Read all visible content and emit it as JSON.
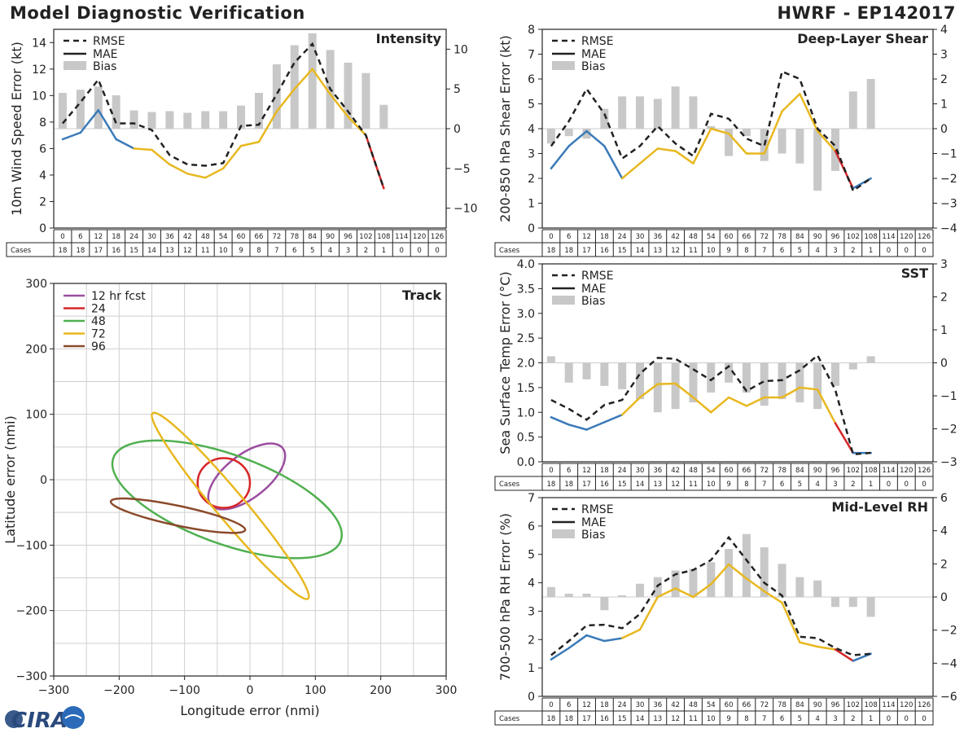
{
  "header": {
    "title": "Model Diagnostic Verification",
    "storm": "HWRF - EP142017",
    "logo_text": "CIRA"
  },
  "forecast_hours": [
    0,
    6,
    12,
    18,
    24,
    30,
    36,
    42,
    48,
    54,
    60,
    66,
    72,
    78,
    84,
    90,
    96,
    102,
    108,
    114,
    120,
    126
  ],
  "cases": [
    18,
    18,
    17,
    16,
    15,
    14,
    13,
    12,
    11,
    10,
    9,
    8,
    7,
    6,
    5,
    4,
    3,
    2,
    1,
    0,
    0,
    0
  ],
  "cases_label": "Cases",
  "legend": {
    "rmse": "RMSE",
    "mae": "MAE",
    "bias": "Bias"
  },
  "colors": {
    "rmse": "#222222",
    "bias": "#c8c8c8",
    "mae_segments": [
      "#3a7ab8",
      "#e8b820",
      "#d62728"
    ]
  },
  "chart_data": [
    {
      "id": "intensity",
      "type": "bar+line",
      "title": "Intensity",
      "ylabel": "10m Wind Speed Error (kt)",
      "ylim": [
        0,
        15
      ],
      "yticks": [
        0,
        2,
        4,
        6,
        8,
        10,
        12,
        14
      ],
      "y2lim": [
        -12.5,
        12.5
      ],
      "y2ticks": [
        -10,
        -5,
        0,
        5,
        10
      ],
      "rmse": [
        7.9,
        9.5,
        11.2,
        7.9,
        7.9,
        7.4,
        5.5,
        4.8,
        4.7,
        4.9,
        7.7,
        7.8,
        10.1,
        12.5,
        13.9,
        10.5,
        8.8,
        7.0,
        3.0
      ],
      "mae": [
        6.7,
        7.2,
        8.9,
        6.7,
        6.0,
        5.9,
        4.8,
        4.1,
        3.8,
        4.5,
        6.2,
        6.5,
        8.8,
        10.5,
        12.0,
        10.1,
        8.4,
        7.0,
        3.0
      ],
      "mae_colors": [
        0,
        0,
        0,
        0,
        0,
        1,
        1,
        1,
        1,
        1,
        1,
        1,
        1,
        1,
        1,
        1,
        1,
        1,
        2
      ],
      "bias": [
        4.5,
        4.9,
        5.3,
        4.2,
        2.3,
        2.1,
        2.2,
        2.0,
        2.2,
        2.2,
        2.9,
        4.5,
        8.1,
        10.5,
        12.0,
        9.9,
        8.3,
        7.0,
        3.0
      ]
    },
    {
      "id": "shear",
      "type": "bar+line",
      "title": "Deep-Layer Shear",
      "ylabel": "200-850 hPa Shear Error (kt)",
      "ylim": [
        0,
        8
      ],
      "yticks": [
        0,
        1,
        2,
        3,
        4,
        5,
        6,
        7,
        8
      ],
      "y2lim": [
        -4,
        4
      ],
      "y2ticks": [
        -4,
        -3,
        -2,
        -1,
        0,
        1,
        2,
        3,
        4
      ],
      "rmse": [
        3.3,
        4.3,
        5.6,
        4.6,
        2.8,
        3.3,
        4.1,
        3.4,
        2.9,
        4.6,
        4.4,
        3.6,
        3.3,
        6.3,
        6.0,
        4.0,
        3.3,
        1.5,
        2.0
      ],
      "mae": [
        2.4,
        3.3,
        3.9,
        3.3,
        2.0,
        2.6,
        3.2,
        3.1,
        2.6,
        4.0,
        3.8,
        3.0,
        3.0,
        4.7,
        5.4,
        3.9,
        3.1,
        1.6,
        2.0
      ],
      "mae_colors": [
        0,
        0,
        0,
        0,
        0,
        1,
        1,
        1,
        1,
        1,
        1,
        1,
        1,
        1,
        1,
        1,
        1,
        2,
        0
      ],
      "bias": [
        -0.6,
        -0.3,
        -0.4,
        0.8,
        1.3,
        1.3,
        1.2,
        1.7,
        1.3,
        0.1,
        -1.1,
        -0.3,
        -1.3,
        -1.0,
        -1.4,
        -2.5,
        -1.7,
        1.5,
        2.0
      ]
    },
    {
      "id": "sst",
      "type": "bar+line",
      "title": "SST",
      "ylabel": "Sea Surface Temp Error (°C)",
      "ylim": [
        0,
        4
      ],
      "yticks": [
        0,
        0.5,
        1,
        1.5,
        2,
        2.5,
        3,
        3.5,
        4
      ],
      "ytick_labels": [
        "0.0",
        "0.5",
        "1.0",
        "1.5",
        "2.0",
        "2.5",
        "3.0",
        "3.5",
        "4.0"
      ],
      "y2lim": [
        -3,
        3
      ],
      "y2ticks": [
        -3,
        -2,
        -1,
        0,
        1,
        2,
        3
      ],
      "rmse": [
        1.25,
        1.07,
        0.85,
        1.15,
        1.25,
        1.78,
        2.1,
        2.08,
        1.87,
        1.65,
        1.93,
        1.43,
        1.63,
        1.65,
        1.85,
        2.15,
        1.45,
        0.15,
        0.18
      ],
      "mae": [
        0.9,
        0.75,
        0.65,
        0.8,
        0.95,
        1.3,
        1.57,
        1.58,
        1.3,
        1.0,
        1.3,
        1.13,
        1.3,
        1.3,
        1.5,
        1.46,
        0.78,
        0.18,
        0.18
      ],
      "mae_colors": [
        0,
        0,
        0,
        0,
        0,
        1,
        1,
        1,
        1,
        1,
        1,
        1,
        1,
        1,
        1,
        1,
        1,
        2,
        0
      ],
      "bias": [
        0.2,
        -0.6,
        -0.5,
        -0.7,
        -0.8,
        -1.1,
        -1.5,
        -1.4,
        -1.2,
        -0.9,
        -0.6,
        -0.9,
        -1.3,
        -1.1,
        -1.2,
        -1.4,
        -0.7,
        -0.2,
        0.2
      ]
    },
    {
      "id": "rh",
      "type": "bar+line",
      "title": "Mid-Level RH",
      "ylabel": "700-500 hPa RH Error (%)",
      "ylim": [
        0,
        7
      ],
      "yticks": [
        0,
        1,
        2,
        3,
        4,
        5,
        6,
        7
      ],
      "y2lim": [
        -6,
        6
      ],
      "y2ticks": [
        -6,
        -4,
        -2,
        0,
        2,
        4,
        6
      ],
      "rmse": [
        1.45,
        1.95,
        2.5,
        2.52,
        2.4,
        2.9,
        3.9,
        4.3,
        4.45,
        4.8,
        5.6,
        4.8,
        4.0,
        3.55,
        2.1,
        2.05,
        1.7,
        1.45,
        1.5
      ],
      "mae": [
        1.3,
        1.7,
        2.15,
        1.95,
        2.05,
        2.35,
        3.5,
        3.8,
        3.5,
        3.95,
        4.65,
        4.15,
        3.7,
        3.3,
        1.9,
        1.75,
        1.65,
        1.25,
        1.5
      ],
      "mae_colors": [
        0,
        0,
        0,
        0,
        0,
        1,
        1,
        1,
        1,
        1,
        1,
        1,
        1,
        1,
        1,
        1,
        1,
        2,
        0
      ],
      "bias": [
        0.6,
        0.2,
        0.2,
        -0.8,
        0.1,
        0.8,
        1.2,
        1.6,
        1.7,
        2.1,
        2.9,
        3.8,
        3.0,
        2.0,
        1.2,
        1.0,
        -0.6,
        -0.6,
        -1.2
      ]
    },
    {
      "id": "track",
      "type": "ellipses",
      "title": "Track",
      "xlabel": "Longitude error (nmi)",
      "ylabel": "Latitude error (nmi)",
      "xlim": [
        -300,
        300
      ],
      "ylim": [
        -300,
        300
      ],
      "ticks": [
        -300,
        -200,
        -100,
        0,
        100,
        200,
        300
      ],
      "ellipses": [
        {
          "label": "12 hr fcst",
          "color": "#9b4da0",
          "cx": -5,
          "cy": 5,
          "a": 70,
          "b": 33,
          "angle": 38
        },
        {
          "label": "24",
          "color": "#d62728",
          "cx": -40,
          "cy": -5,
          "a": 40,
          "b": 38,
          "angle": 0
        },
        {
          "label": "48",
          "color": "#50b050",
          "cx": -35,
          "cy": -30,
          "a": 185,
          "b": 68,
          "angle": -20
        },
        {
          "label": "72",
          "color": "#e8b820",
          "cx": -30,
          "cy": -40,
          "a": 185,
          "b": 22,
          "angle": -50
        },
        {
          "label": "96",
          "color": "#8b4a2b",
          "cx": -110,
          "cy": -55,
          "a": 105,
          "b": 15,
          "angle": -12
        }
      ]
    }
  ]
}
